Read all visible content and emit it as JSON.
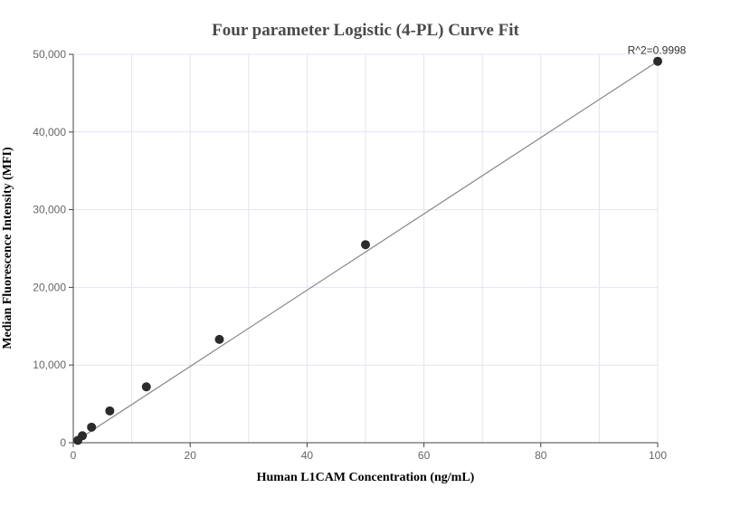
{
  "chart_data": {
    "type": "scatter",
    "title": "Four parameter Logistic (4-PL) Curve Fit",
    "xlabel": "Human L1CAM Concentration (ng/mL)",
    "ylabel": "Median Fluorescence Intensity (MFI)",
    "xlim": [
      0,
      100
    ],
    "ylim": [
      0,
      50000
    ],
    "x_ticks": [
      0,
      20,
      40,
      60,
      80,
      100
    ],
    "y_ticks": [
      0,
      10000,
      20000,
      30000,
      40000,
      50000
    ],
    "x_tick_labels": [
      "0",
      "20",
      "40",
      "60",
      "80",
      "100"
    ],
    "y_tick_labels": [
      "0",
      "10,000",
      "20,000",
      "30,000",
      "40,000",
      "50,000"
    ],
    "grid": true,
    "points": {
      "x": [
        0.78,
        1.56,
        3.125,
        6.25,
        12.5,
        25,
        50,
        100
      ],
      "y": [
        300,
        900,
        2000,
        4100,
        7200,
        13300,
        25500,
        49100
      ]
    },
    "fit_line": {
      "x": [
        0,
        100
      ],
      "y": [
        0,
        49100
      ]
    },
    "colors": {
      "points": "#2b2b2b",
      "fit_line": "#888888",
      "grid": "#e4e4f0"
    },
    "annotation": "R^2=0.9998"
  }
}
